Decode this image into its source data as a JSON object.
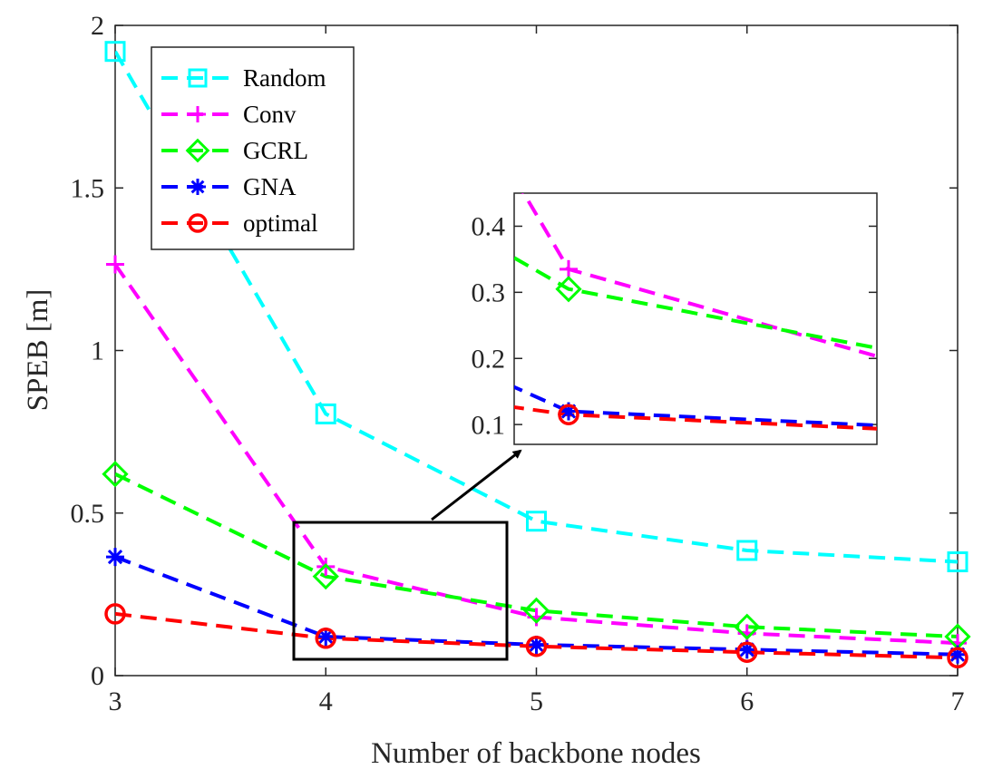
{
  "chart_data": {
    "type": "line",
    "xlabel": "Number of backbone nodes",
    "ylabel": "SPEB [m]",
    "xlim": [
      3,
      7
    ],
    "ylim": [
      0,
      2
    ],
    "xticks": [
      "3",
      "4",
      "5",
      "6",
      "7"
    ],
    "yticks": [
      "0",
      "0.5",
      "1",
      "1.5",
      "2"
    ],
    "x": [
      3,
      4,
      5,
      6,
      7
    ],
    "legend_position": "top-left",
    "series": [
      {
        "name": "Random",
        "values": [
          1.92,
          0.805,
          0.475,
          0.385,
          0.35
        ],
        "color": "#00ffff",
        "marker": "square"
      },
      {
        "name": "Conv",
        "values": [
          1.265,
          0.335,
          0.18,
          0.13,
          0.1
        ],
        "color": "#ff00ff",
        "marker": "plus"
      },
      {
        "name": "GCRL",
        "values": [
          0.62,
          0.305,
          0.2,
          0.15,
          0.12
        ],
        "color": "#00ff00",
        "marker": "diamond"
      },
      {
        "name": "GNA",
        "values": [
          0.365,
          0.12,
          0.095,
          0.08,
          0.065
        ],
        "color": "#0000ff",
        "marker": "asterisk"
      },
      {
        "name": "optimal",
        "values": [
          0.19,
          0.115,
          0.09,
          0.072,
          0.055
        ],
        "color": "#ff0000",
        "marker": "circle"
      }
    ],
    "inset": {
      "xlim": [
        3.85,
        4.85
      ],
      "ylim": [
        0.07,
        0.45
      ],
      "yticks": [
        "0.1",
        "0.2",
        "0.3",
        "0.4"
      ]
    }
  }
}
